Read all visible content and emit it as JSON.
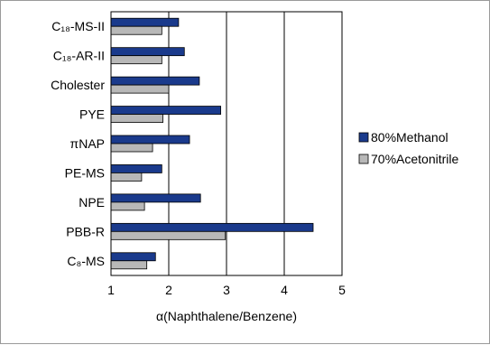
{
  "chart_data": {
    "type": "bar",
    "orientation": "horizontal",
    "categories": [
      "C₁₈-MS-II",
      "C₁₈-AR-II",
      "Cholester",
      "PYE",
      "πNAP",
      "PE-MS",
      "NPE",
      "PBB-R",
      "C₈-MS"
    ],
    "series": [
      {
        "name": "80%Methanol",
        "color": "#1a3a8c",
        "values": [
          2.17,
          2.27,
          2.53,
          2.9,
          2.36,
          1.88,
          2.55,
          4.5,
          1.77
        ]
      },
      {
        "name": "70%Acetonitrile",
        "color": "#b8b8b8",
        "values": [
          1.88,
          1.88,
          2.0,
          1.9,
          1.72,
          1.53,
          1.58,
          2.98,
          1.62
        ]
      }
    ],
    "xlabel": "α(Naphthalene/Benzene)",
    "ylabel": "",
    "title": "",
    "xlim": [
      1,
      5
    ],
    "xticks": [
      "1",
      "2",
      "3",
      "4",
      "5"
    ],
    "grid": "vertical",
    "legend_position": "right"
  }
}
